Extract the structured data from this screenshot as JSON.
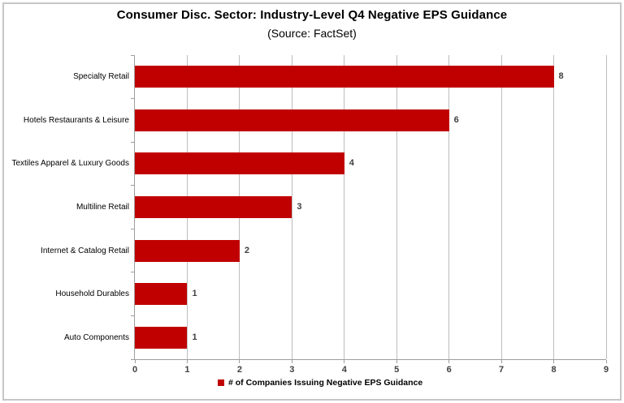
{
  "title": "Consumer Disc. Sector: Industry-Level Q4 Negative EPS Guidance",
  "subtitle": "(Source: FactSet)",
  "chart_data": {
    "type": "bar",
    "orientation": "horizontal",
    "title": "Consumer Disc. Sector: Industry-Level Q4 Negative EPS Guidance",
    "subtitle": "(Source: FactSet)",
    "categories": [
      "Specialty Retail",
      "Hotels Restaurants & Leisure",
      "Textiles Apparel & Luxury Goods",
      "Multiline Retail",
      "Internet & Catalog Retail",
      "Household Durables",
      "Auto Components"
    ],
    "values": [
      8,
      6,
      4,
      3,
      2,
      1,
      1
    ],
    "xlim": [
      0,
      9
    ],
    "x_ticks": [
      "0",
      "1",
      "2",
      "3",
      "4",
      "5",
      "6",
      "7",
      "8",
      "9"
    ],
    "grid": true,
    "legend": {
      "label": "# of Companies Issuing Negative EPS Guidance",
      "position": "bottom",
      "marker": "red-square"
    },
    "colors": {
      "bar": "#C00000",
      "gridline": "#bdbdbd",
      "axis": "#9e9e9e",
      "data_label": "#404040",
      "tick_label": "#404040",
      "category_label": "#000000",
      "title": "#000000"
    }
  }
}
